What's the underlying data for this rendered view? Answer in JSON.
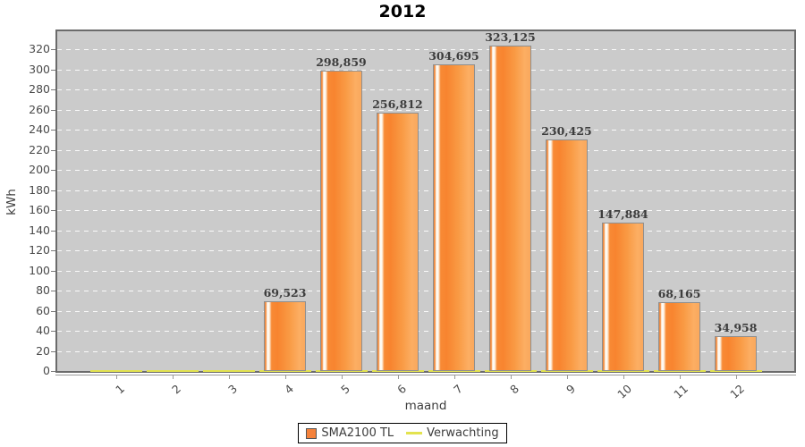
{
  "window": {
    "title": "2012"
  },
  "colors": {
    "bar_orange": "#f5823b",
    "expect_yellow": "#e3e34f",
    "plot_background": "#cbcbcb",
    "grid_white": "#ffffff"
  },
  "chart_data": {
    "type": "bar",
    "title": "2012",
    "xlabel": "maand",
    "ylabel": "kWh",
    "categories": [
      "1",
      "2",
      "3",
      "4",
      "5",
      "6",
      "7",
      "8",
      "9",
      "10",
      "11",
      "12"
    ],
    "series": [
      {
        "name": "SMA2100 TL",
        "type": "bar",
        "color": "#f5823b",
        "values": [
          0,
          0,
          0,
          69.523,
          298.859,
          256.812,
          304.695,
          323.125,
          230.425,
          147.884,
          68.165,
          34.958
        ],
        "bar_labels": [
          "",
          "",
          "",
          "69,523",
          "298,859",
          "256,812",
          "304,695",
          "323,125",
          "230,425",
          "147,884",
          "68,165",
          "34,958"
        ]
      },
      {
        "name": "Verwachting",
        "type": "line",
        "color": "#e3e34f",
        "values": [
          0,
          0,
          0,
          0,
          0,
          0,
          0,
          0,
          0,
          0,
          0,
          0
        ]
      }
    ],
    "ylim": [
      0,
      340
    ],
    "yticks": [
      0,
      20,
      40,
      60,
      80,
      100,
      120,
      140,
      160,
      180,
      200,
      220,
      240,
      260,
      280,
      300,
      320
    ],
    "grid": "horizontal white dashed",
    "plot_bg": "#cbcbcb",
    "legend_position": "bottom-center"
  }
}
